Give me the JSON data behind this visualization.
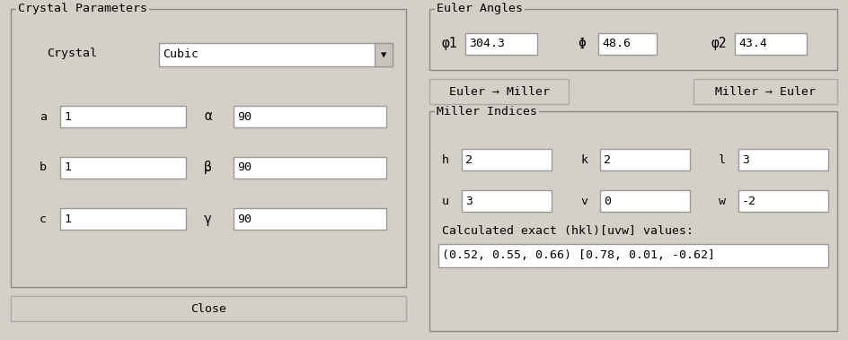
{
  "bg_color": "#d4d0c8",
  "font_family": "monospace",
  "font_size": 9.5,
  "left_panel": {
    "title": "Crystal Parameters",
    "crystal_label": "Crystal",
    "crystal_value": "Cubic",
    "rows": [
      {
        "label": "a",
        "value1": "1",
        "greek": "α",
        "value2": "90"
      },
      {
        "label": "b",
        "value1": "1",
        "greek": "β",
        "value2": "90"
      },
      {
        "label": "c",
        "value1": "1",
        "greek": "γ",
        "value2": "90"
      }
    ],
    "close_btn": "Close"
  },
  "right_panel": {
    "euler_title": "Euler Angles",
    "euler_entries": [
      {
        "label": "φ1",
        "value": "304.3"
      },
      {
        "label": "Φ",
        "value": "48.6"
      },
      {
        "label": "φ2",
        "value": "43.4"
      }
    ],
    "btn1": "Euler → Miller",
    "btn2": "Miller → Euler",
    "miller_title": "Miller Indices",
    "miller_row1": [
      {
        "label": "h",
        "value": "2"
      },
      {
        "label": "k",
        "value": "2"
      },
      {
        "label": "l",
        "value": "3"
      }
    ],
    "miller_row2": [
      {
        "label": "u",
        "value": "3"
      },
      {
        "label": "v",
        "value": "0"
      },
      {
        "label": "w",
        "value": "-2"
      }
    ],
    "calc_label": "Calculated exact (hkl)[uvw] values:",
    "calc_value": "(0.52, 0.55, 0.66) [0.78, 0.01, -0.62]"
  }
}
